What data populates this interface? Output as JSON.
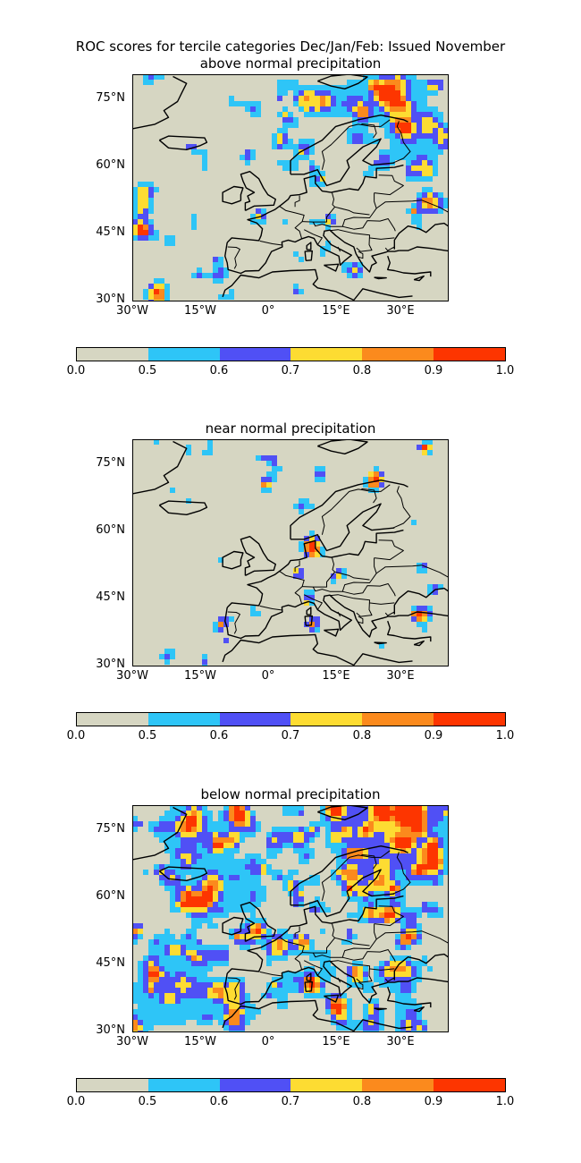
{
  "figure": {
    "main_title": "ROC scores for tercile categories Dec/Jan/Feb: Issued November",
    "lat_ticks": [
      "75°N",
      "60°N",
      "45°N",
      "30°N"
    ],
    "lon_ticks": [
      "30°W",
      "15°W",
      "0°",
      "15°E",
      "30°E"
    ],
    "panels": [
      {
        "subtitle": "above normal precipitation"
      },
      {
        "subtitle": "near normal precipitation"
      },
      {
        "subtitle": "below normal precipitation"
      }
    ]
  },
  "colorbar": {
    "labels": [
      "0.0",
      "0.5",
      "0.6",
      "0.7",
      "0.8",
      "0.9",
      "1.0"
    ],
    "bins": [
      {
        "range": "0.0-0.5",
        "color": "#d6d6c2"
      },
      {
        "range": "0.5-0.6",
        "color": "#2ec5f7"
      },
      {
        "range": "0.6-0.7",
        "color": "#5050f5"
      },
      {
        "range": "0.7-0.8",
        "color": "#fddc32"
      },
      {
        "range": "0.8-0.9",
        "color": "#fb8a1d"
      },
      {
        "range": "0.9-1.0",
        "color": "#fd3500"
      }
    ]
  },
  "map_extent": {
    "lon": [
      -30,
      40
    ],
    "lat": [
      30,
      80
    ]
  }
}
